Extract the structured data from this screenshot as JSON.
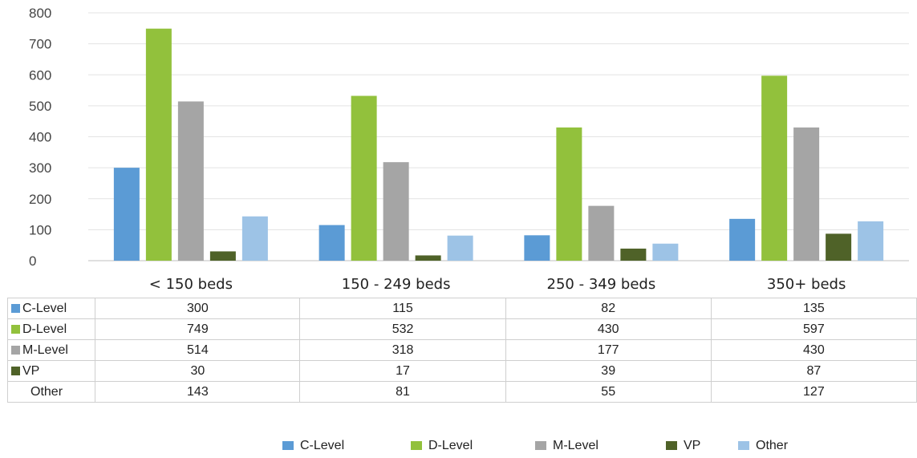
{
  "chart_data": {
    "type": "bar",
    "categories": [
      "< 150 beds",
      "150 - 249 beds",
      "250 - 349 beds",
      "350+ beds"
    ],
    "series": [
      {
        "name": "C-Level",
        "color": "#5B9BD5",
        "values": [
          300,
          115,
          82,
          135
        ]
      },
      {
        "name": "D-Level",
        "color": "#92C13C",
        "values": [
          749,
          532,
          430,
          597
        ]
      },
      {
        "name": "M-Level",
        "color": "#A5A5A5",
        "values": [
          514,
          318,
          177,
          430
        ]
      },
      {
        "name": "VP",
        "color": "#4F6228",
        "values": [
          30,
          17,
          39,
          87
        ]
      },
      {
        "name": "Other",
        "color": "#9DC3E6",
        "values": [
          143,
          81,
          55,
          127
        ]
      }
    ],
    "ylim": [
      0,
      800
    ],
    "yticks": [
      "0",
      "100",
      "200",
      "300",
      "400",
      "500",
      "600",
      "700",
      "800"
    ],
    "grid": true,
    "legend_position": "bottom",
    "data_table": true
  }
}
